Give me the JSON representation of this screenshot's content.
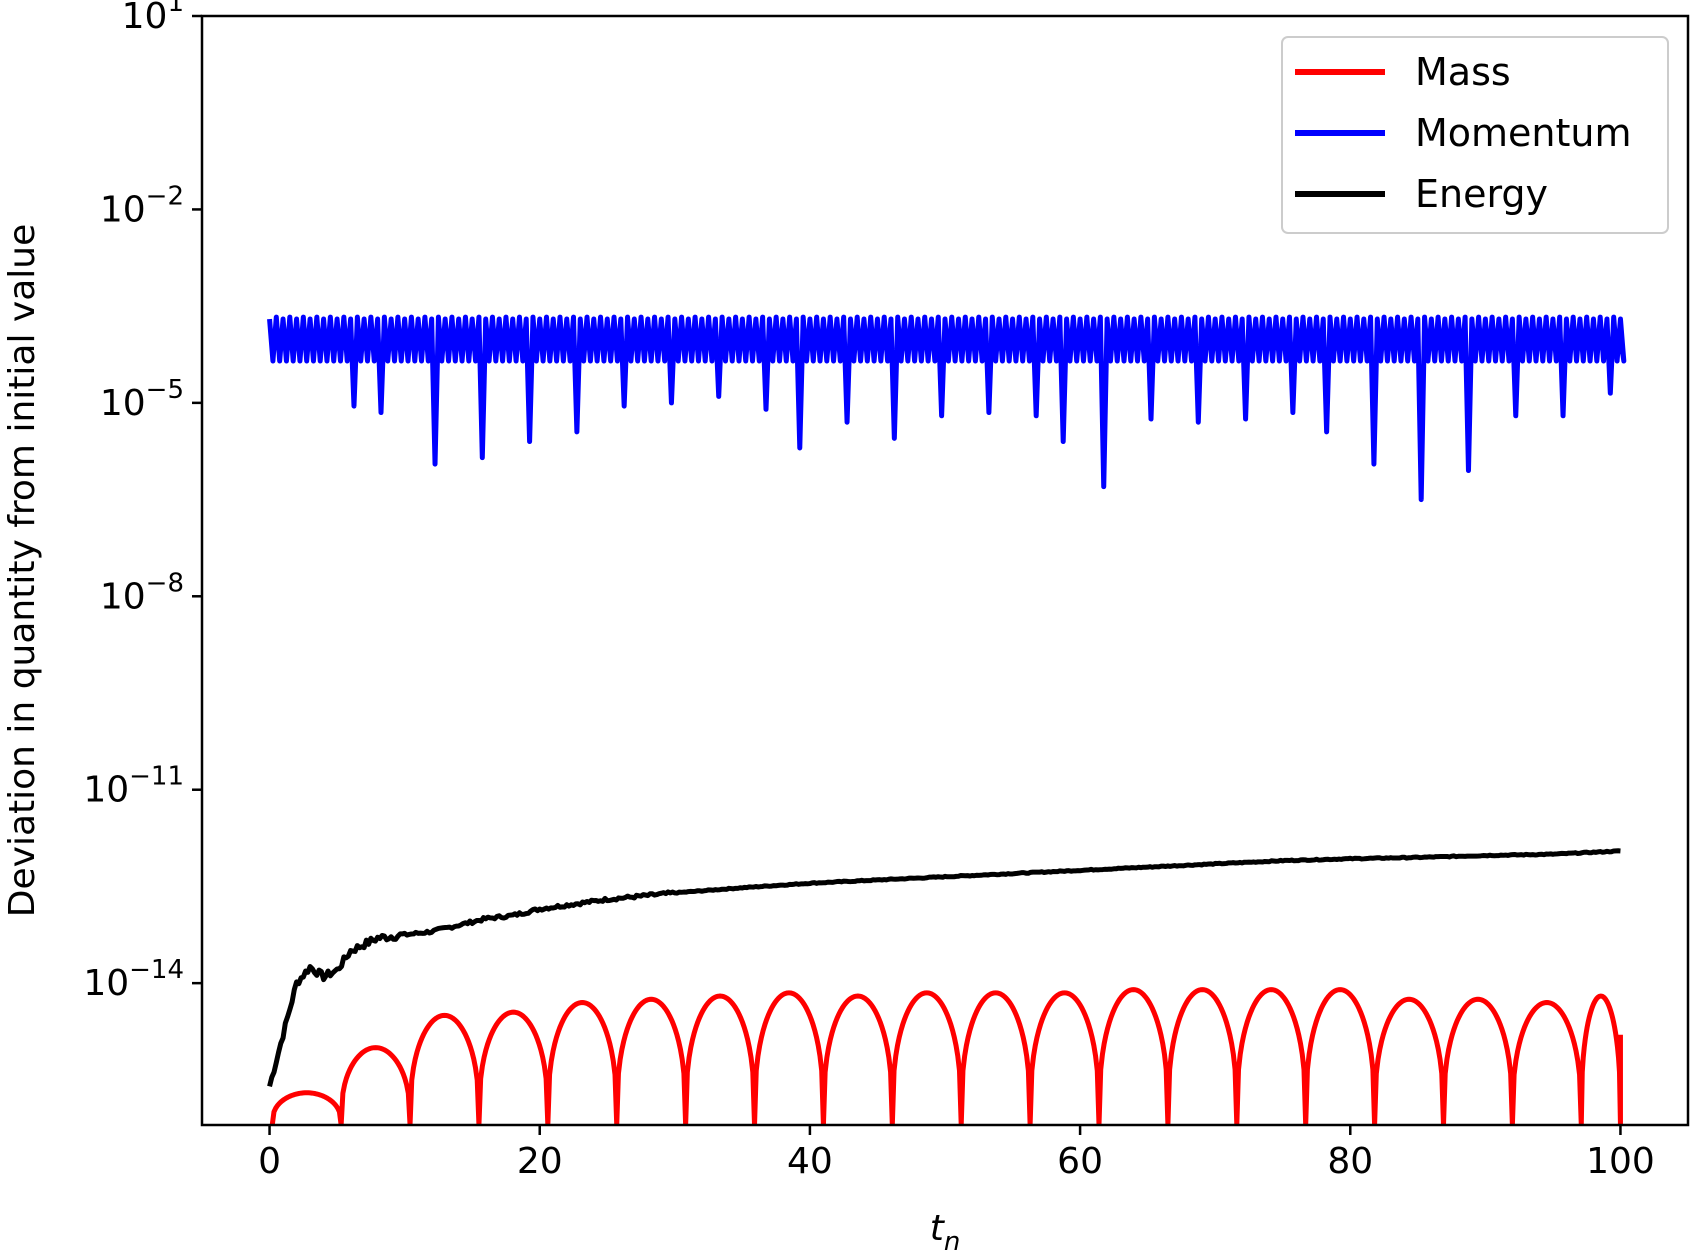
{
  "chart_data": {
    "type": "line",
    "xlabel_main": "t",
    "xlabel_sub": "n",
    "ylabel": "Deviation in quantity from initial value",
    "xlim": [
      -5,
      105
    ],
    "ylim_log10": [
      -16.2,
      1
    ],
    "yscale": "log",
    "grid": false,
    "legend_position": "top-right",
    "x_ticks": [
      {
        "value": 0,
        "label": "0"
      },
      {
        "value": 20,
        "label": "20"
      },
      {
        "value": 40,
        "label": "40"
      },
      {
        "value": 60,
        "label": "60"
      },
      {
        "value": 80,
        "label": "80"
      },
      {
        "value": 100,
        "label": "100"
      }
    ],
    "y_ticks": [
      {
        "exp": 1,
        "base": "10",
        "sup": "1"
      },
      {
        "exp": -2,
        "base": "10",
        "sup": "−2"
      },
      {
        "exp": -5,
        "base": "10",
        "sup": "−5"
      },
      {
        "exp": -8,
        "base": "10",
        "sup": "−8"
      },
      {
        "exp": -11,
        "base": "10",
        "sup": "−11"
      },
      {
        "exp": -14,
        "base": "10",
        "sup": "−14"
      }
    ],
    "series": [
      {
        "name": "Mass",
        "color": "#ff0000",
        "arch_period": 5.1,
        "arch_offset": 0.2,
        "arch_peaks_log10": [
          -15.7,
          -15.0,
          -14.5,
          -14.45,
          -14.3,
          -14.25,
          -14.2,
          -14.15,
          -14.2,
          -14.15,
          -14.15,
          -14.15,
          -14.1,
          -14.1,
          -14.1,
          -14.1,
          -14.25,
          -14.25,
          -14.3,
          -14.2
        ],
        "arch_min_log10": -16.2,
        "endpoint": {
          "x": 100,
          "y_log10": -14.8
        }
      },
      {
        "name": "Momentum",
        "color": "#0000ff",
        "upper_log10": -3.7,
        "band_low_log10": -4.35,
        "spike_lows_log10": [
          {
            "x": 1.0,
            "y_log10": -4.7
          },
          {
            "x": 2.5,
            "y_log10": -4.85
          },
          {
            "x": 3.5,
            "y_log10": -5.4
          },
          {
            "x": 6.2,
            "y_log10": -5.05
          },
          {
            "x": 8.2,
            "y_log10": -5.15
          },
          {
            "x": 12.2,
            "y_log10": -5.95
          },
          {
            "x": 15.7,
            "y_log10": -5.85
          },
          {
            "x": 19.2,
            "y_log10": -5.6
          },
          {
            "x": 22.7,
            "y_log10": -5.45
          },
          {
            "x": 26.2,
            "y_log10": -5.05
          },
          {
            "x": 29.7,
            "y_log10": -5.0
          },
          {
            "x": 33.2,
            "y_log10": -4.9
          },
          {
            "x": 36.7,
            "y_log10": -5.1
          },
          {
            "x": 39.2,
            "y_log10": -5.7
          },
          {
            "x": 42.7,
            "y_log10": -5.3
          },
          {
            "x": 46.2,
            "y_log10": -5.55
          },
          {
            "x": 49.7,
            "y_log10": -5.2
          },
          {
            "x": 53.2,
            "y_log10": -5.15
          },
          {
            "x": 56.7,
            "y_log10": -5.2
          },
          {
            "x": 58.7,
            "y_log10": -5.6
          },
          {
            "x": 61.8,
            "y_log10": -6.3
          },
          {
            "x": 65.2,
            "y_log10": -5.25
          },
          {
            "x": 68.7,
            "y_log10": -5.3
          },
          {
            "x": 72.2,
            "y_log10": -5.25
          },
          {
            "x": 75.7,
            "y_log10": -5.15
          },
          {
            "x": 78.2,
            "y_log10": -5.45
          },
          {
            "x": 81.7,
            "y_log10": -5.95
          },
          {
            "x": 85.2,
            "y_log10": -6.5
          },
          {
            "x": 88.7,
            "y_log10": -6.05
          },
          {
            "x": 92.2,
            "y_log10": -5.2
          },
          {
            "x": 95.7,
            "y_log10": -5.2
          },
          {
            "x": 99.2,
            "y_log10": -4.85
          }
        ]
      },
      {
        "name": "Energy",
        "color": "#000000",
        "points": [
          {
            "x": 0,
            "y_log10": -15.6
          },
          {
            "x": 0.5,
            "y_log10": -15.2
          },
          {
            "x": 1,
            "y_log10": -14.8
          },
          {
            "x": 1.5,
            "y_log10": -14.4
          },
          {
            "x": 2,
            "y_log10": -14.0
          },
          {
            "x": 3,
            "y_log10": -13.75
          },
          {
            "x": 4,
            "y_log10": -13.9
          },
          {
            "x": 5,
            "y_log10": -13.8
          },
          {
            "x": 6,
            "y_log10": -13.5
          },
          {
            "x": 7,
            "y_log10": -13.4
          },
          {
            "x": 8,
            "y_log10": -13.3
          },
          {
            "x": 10,
            "y_log10": -13.25
          },
          {
            "x": 12,
            "y_log10": -13.2
          },
          {
            "x": 14,
            "y_log10": -13.1
          },
          {
            "x": 16,
            "y_log10": -13.0
          },
          {
            "x": 18,
            "y_log10": -12.95
          },
          {
            "x": 20,
            "y_log10": -12.85
          },
          {
            "x": 25,
            "y_log10": -12.7
          },
          {
            "x": 30,
            "y_log10": -12.6
          },
          {
            "x": 35,
            "y_log10": -12.52
          },
          {
            "x": 40,
            "y_log10": -12.45
          },
          {
            "x": 45,
            "y_log10": -12.4
          },
          {
            "x": 50,
            "y_log10": -12.35
          },
          {
            "x": 55,
            "y_log10": -12.3
          },
          {
            "x": 60,
            "y_log10": -12.25
          },
          {
            "x": 65,
            "y_log10": -12.2
          },
          {
            "x": 70,
            "y_log10": -12.15
          },
          {
            "x": 75,
            "y_log10": -12.1
          },
          {
            "x": 80,
            "y_log10": -12.07
          },
          {
            "x": 85,
            "y_log10": -12.05
          },
          {
            "x": 90,
            "y_log10": -12.02
          },
          {
            "x": 95,
            "y_log10": -12.0
          },
          {
            "x": 100,
            "y_log10": -11.95
          }
        ]
      }
    ]
  }
}
